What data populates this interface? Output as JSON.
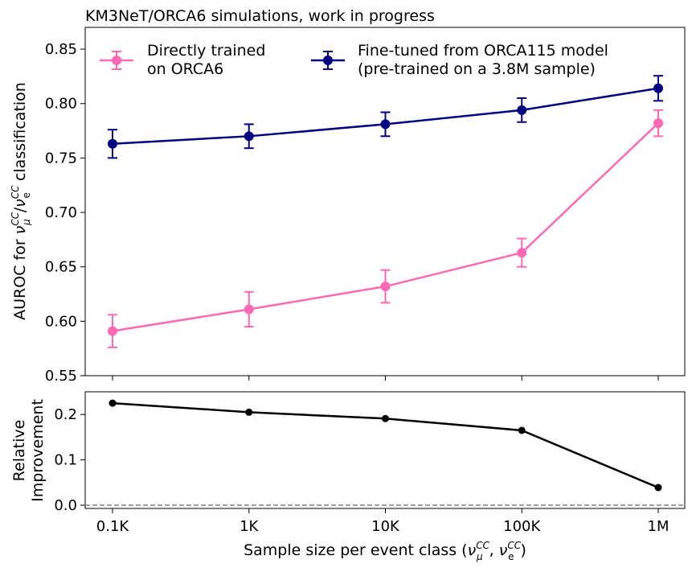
{
  "chart_data": [
    {
      "type": "line",
      "title": "KM3NeT/ORCA6 simulations, work in progress",
      "ylabel": {
        "prefix": "AUROC  for  ",
        "nu": "ν",
        "mu": "μ",
        "e": "e",
        "cc": "CC",
        "slash": "/",
        "suffix": "  classification"
      },
      "categories": [
        "0.1K",
        "1K",
        "10K",
        "100K",
        "1M"
      ],
      "ylim": [
        0.55,
        0.87
      ],
      "yticks": [
        "0.55",
        "0.60",
        "0.65",
        "0.70",
        "0.75",
        "0.80",
        "0.85"
      ],
      "legend_placement": "top",
      "series": [
        {
          "name_lines": [
            "Directly trained",
            "on ORCA6"
          ],
          "color": "#ff69b4",
          "values": [
            0.591,
            0.611,
            0.632,
            0.663,
            0.782
          ],
          "errors": [
            0.015,
            0.016,
            0.015,
            0.013,
            0.012
          ]
        },
        {
          "name_lines": [
            "Fine-tuned from ORCA115 model",
            "(pre-trained on a 3.8M sample)"
          ],
          "color": "#000080",
          "values": [
            0.763,
            0.77,
            0.781,
            0.794,
            0.814
          ],
          "errors": [
            0.013,
            0.011,
            0.011,
            0.011,
            0.0115
          ]
        }
      ]
    },
    {
      "type": "line",
      "ylabel_lines": [
        "Relative",
        "Improvement"
      ],
      "categories": [
        "0.1K",
        "1K",
        "10K",
        "100K",
        "1M"
      ],
      "xlabel": {
        "prefix": "Sample size per event class (",
        "nu": "ν",
        "mu": "μ",
        "e": "e",
        "cc": "CC",
        "sep": ", ",
        "suffix": ")"
      },
      "ylim": [
        -0.007,
        0.25
      ],
      "yticks": [
        "0.0",
        "0.1",
        "0.2"
      ],
      "reference_line": 0.0,
      "color": "#000000",
      "values": [
        0.225,
        0.205,
        0.191,
        0.165,
        0.039
      ]
    }
  ]
}
